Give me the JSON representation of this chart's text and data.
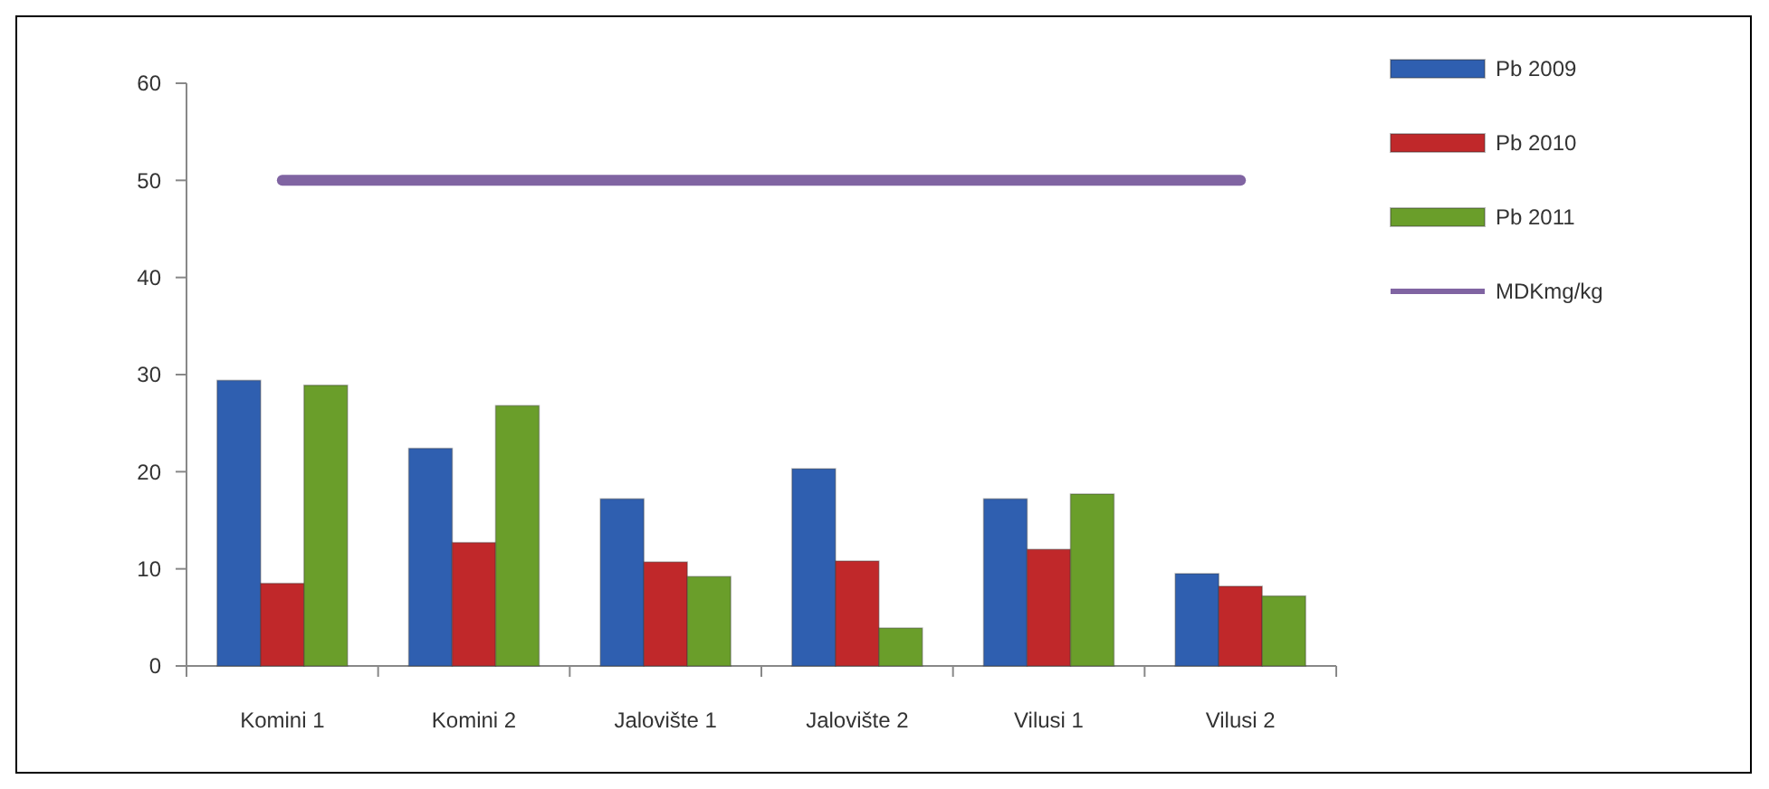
{
  "chart_data": {
    "type": "bar",
    "categories": [
      "Komini 1",
      "Komini 2",
      "Jalovište 1",
      "Jalovište 2",
      "Vilusi 1",
      "Vilusi 2"
    ],
    "series": [
      {
        "name": "Pb 2009",
        "color": "#2f5fb0",
        "values": [
          29.4,
          22.4,
          17.2,
          20.3,
          17.2,
          9.5
        ]
      },
      {
        "name": "Pb 2010",
        "color": "#c0282a",
        "values": [
          8.5,
          12.7,
          10.7,
          10.8,
          12.0,
          8.2
        ]
      },
      {
        "name": "Pb 2011",
        "color": "#6a9e2a",
        "values": [
          28.9,
          26.8,
          9.2,
          3.9,
          17.7,
          7.2
        ]
      },
      {
        "name": "MDKmg/kg",
        "type": "line",
        "color": "#8064a2",
        "values": [
          50,
          50,
          50,
          50,
          50,
          50
        ]
      }
    ],
    "ylim": [
      0,
      60
    ],
    "yticks": [
      0,
      10,
      20,
      30,
      40,
      50,
      60
    ],
    "legend": "right"
  }
}
